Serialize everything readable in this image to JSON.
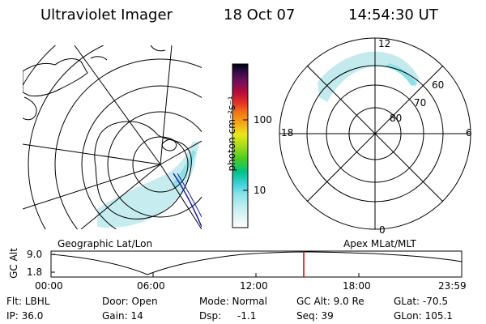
{
  "header": {
    "title": "Ultraviolet Imager",
    "date": "18 Oct 07",
    "time": "14:54:30 UT"
  },
  "colorbar": {
    "unit_label": "photon cm⁻²s⁻¹",
    "ticks": [
      "100",
      "10"
    ]
  },
  "geo_map": {
    "caption": "Geographic Lat/Lon"
  },
  "polar_map": {
    "caption": "Apex MLat/MLT",
    "mlt_labels": [
      "12",
      "18",
      "6",
      "0"
    ],
    "lat_labels": [
      "60",
      "70",
      "80"
    ]
  },
  "altitude_plot": {
    "ylabel": "GC Alt",
    "yticks": [
      "9.0",
      "1.8"
    ],
    "xticks": [
      "00:00",
      "06:00",
      "12:00",
      "18:00",
      "23:59"
    ],
    "current_time_marker": "14:54:30"
  },
  "info": {
    "flt": "Flt: LBHL",
    "ip": "IP: 36.0",
    "door": "Door: Open",
    "gain": "Gain: 14",
    "mode": "Mode: Normal",
    "dsp_label": "Dsp:",
    "dsp_value": "-1.1",
    "gc_alt": "GC Alt: 9.0 Re",
    "seq": "Seq: 39",
    "glat": "GLat: -70.5",
    "glon": "GLon: 105.1"
  },
  "colors": {
    "aurora": "#bde9ec",
    "aurora_dense": "#8fe0e6",
    "marker": "#cc0000",
    "track": "#1a1aa8"
  }
}
